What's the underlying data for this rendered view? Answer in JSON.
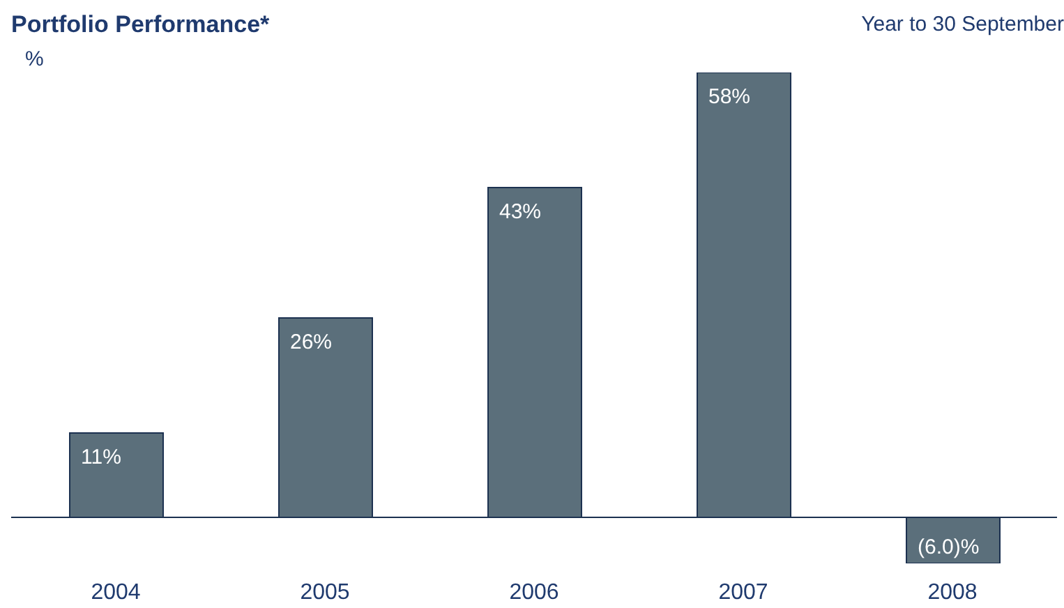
{
  "chart_data": {
    "type": "bar",
    "title": "Portfolio Performance*",
    "subtitle": "Year to 30 September",
    "ylabel": "%",
    "categories": [
      "2004",
      "2005",
      "2006",
      "2007",
      "2008"
    ],
    "values": [
      11,
      26,
      43,
      58,
      -6
    ],
    "value_labels": [
      "11%",
      "26%",
      "43%",
      "58%",
      "(6.0)%"
    ],
    "color": "#5b6f7b",
    "tick_labels": "x"
  }
}
